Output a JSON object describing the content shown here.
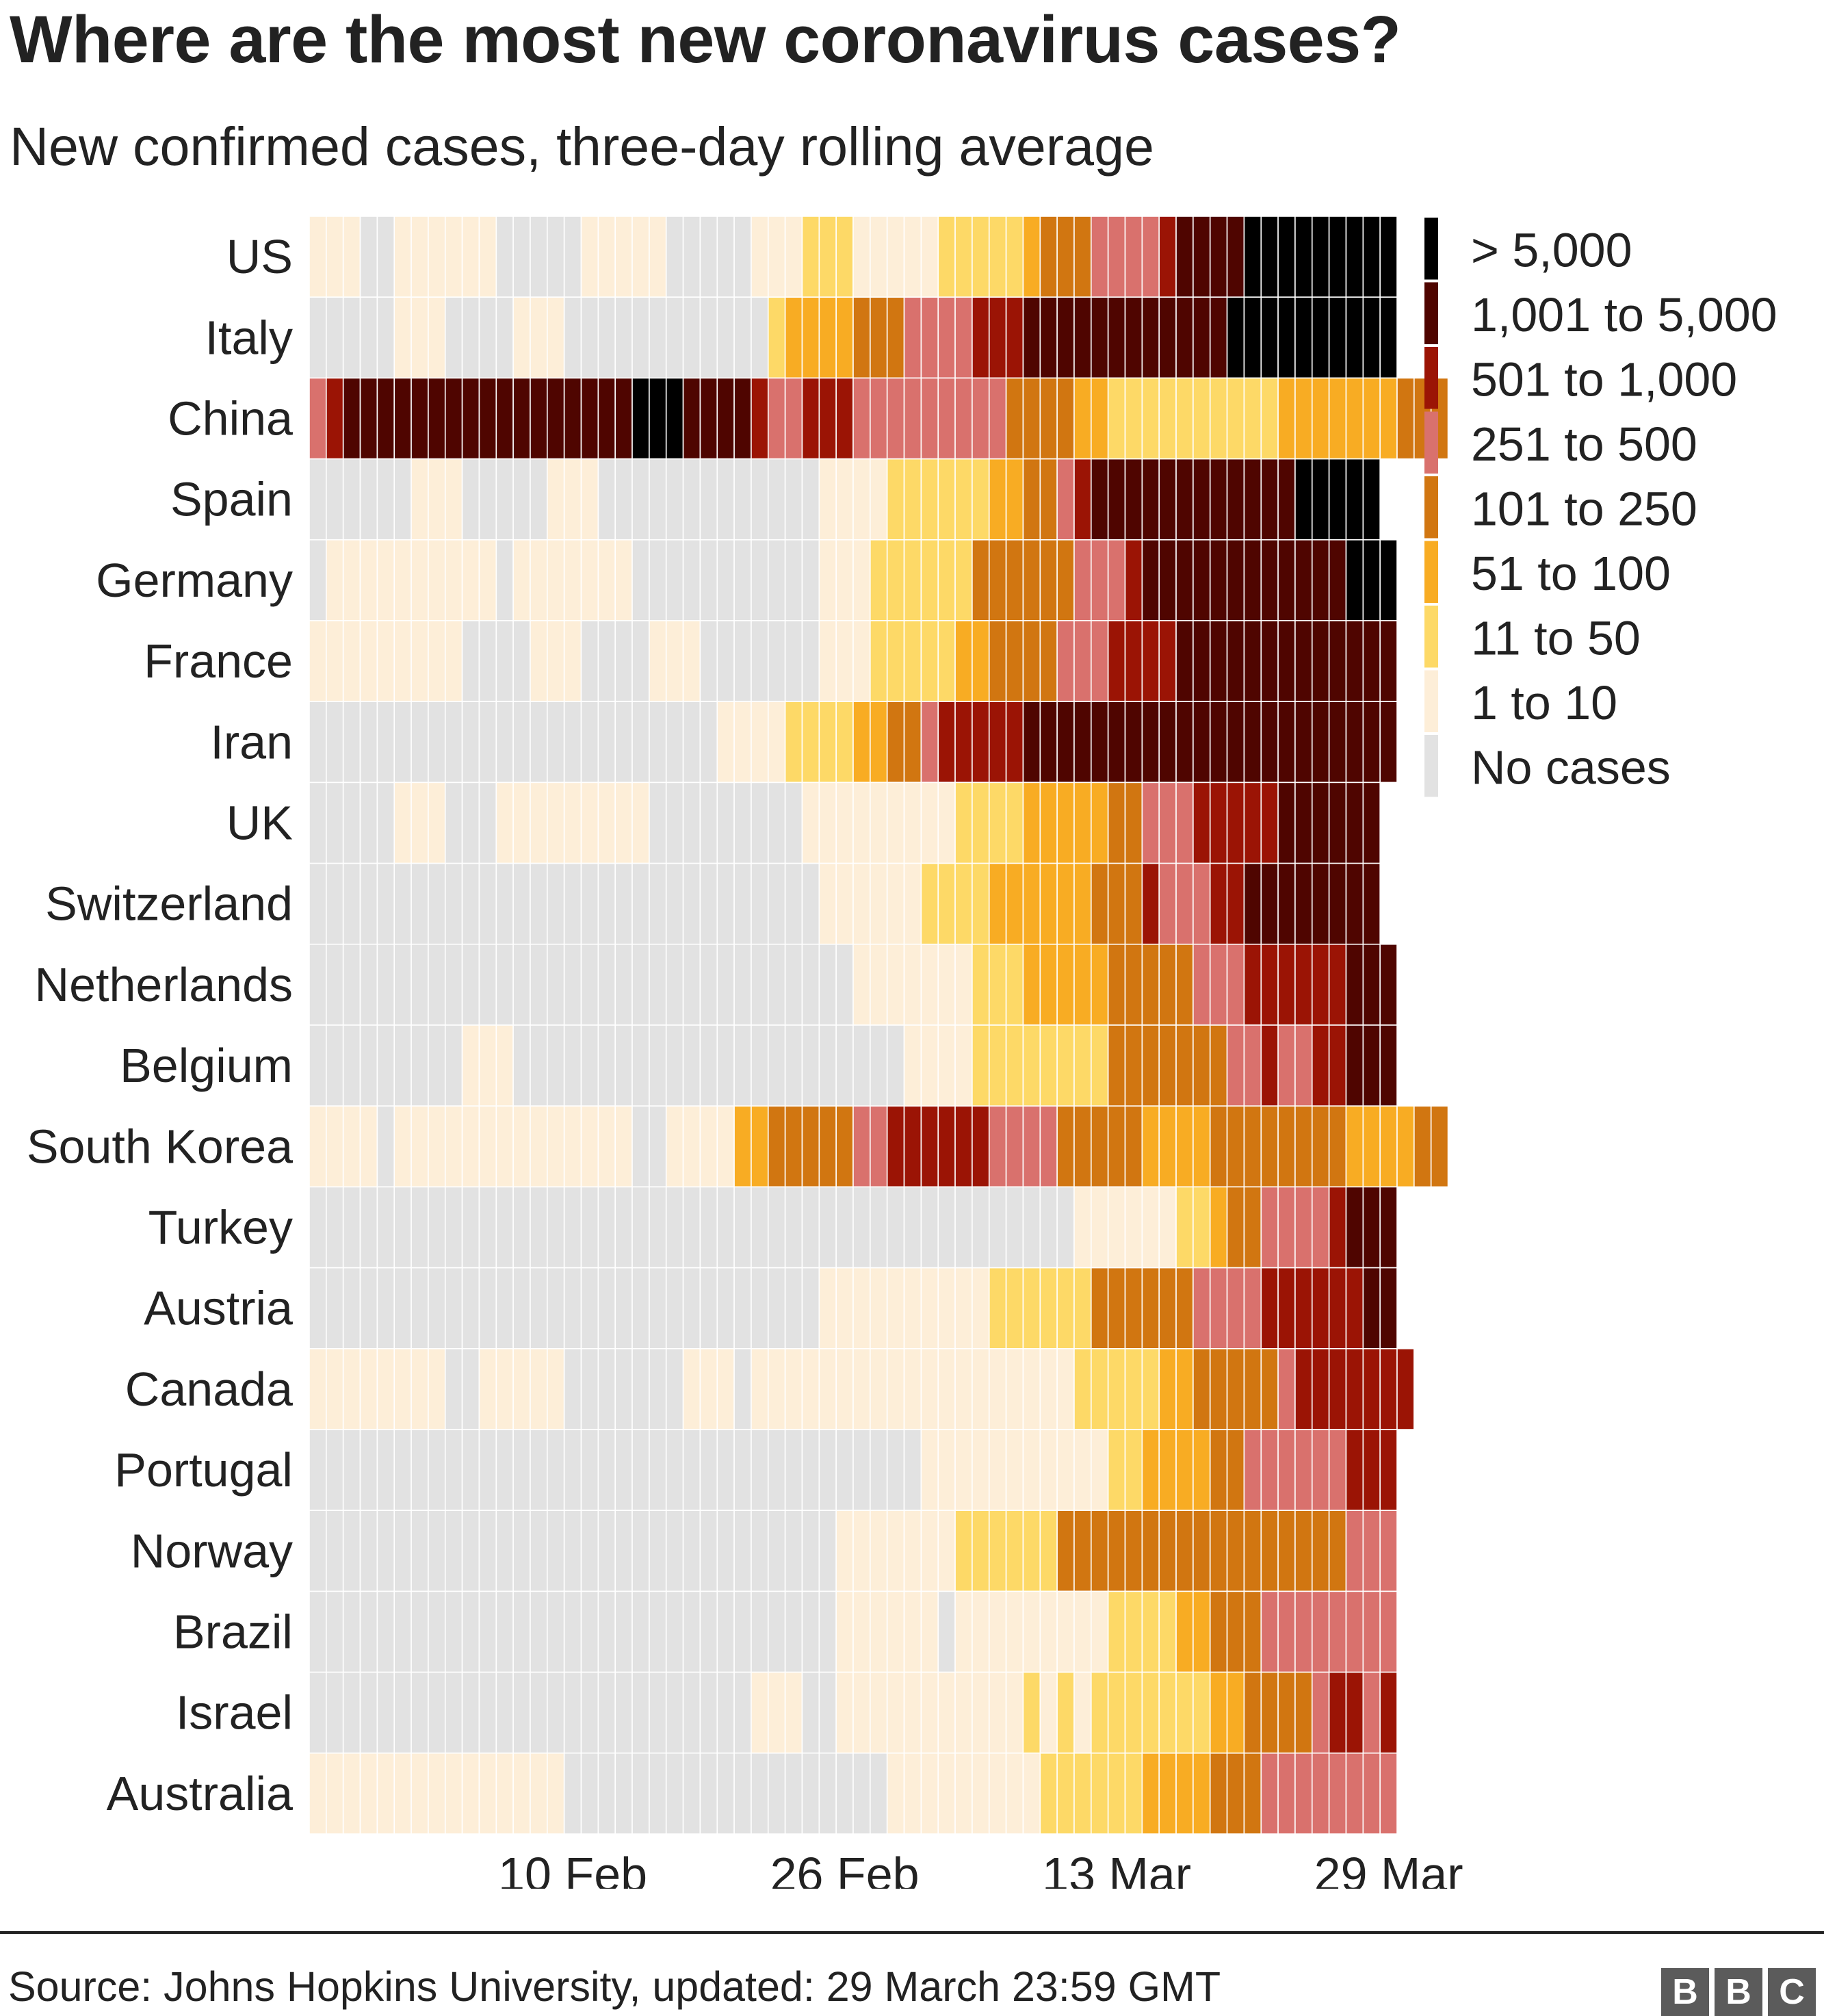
{
  "title": "Where are the most new coronavirus cases?",
  "subtitle": "New confirmed cases, three-day rolling average",
  "source": "Source: Johns Hopkins University, updated:  29 March 23:59 GMT",
  "logo_letters": [
    "B",
    "B",
    "C"
  ],
  "chart_data": {
    "type": "heatmap",
    "title": "Where are the most new coronavirus cases?",
    "subtitle": "New confirmed cases, three-day rolling average",
    "xlabel": "",
    "ylabel": "",
    "x_ticks": [
      "10 Feb",
      "26 Feb",
      "13 Mar",
      "29 Mar"
    ],
    "x_tick_day_index": [
      49,
      65,
      81,
      97
    ],
    "date_range": [
      "22 Jan",
      "29 Mar"
    ],
    "grid": false,
    "legend_position": "right",
    "legend": [
      {
        "level": 8,
        "label": "> 5,000",
        "color": "#000000"
      },
      {
        "level": 7,
        "label": "1,001 to 5,000",
        "color": "#4f0500"
      },
      {
        "level": 6,
        "label": "501 to 1,000",
        "color": "#9b1405"
      },
      {
        "level": 5,
        "label": "251 to 500",
        "color": "#d9716d"
      },
      {
        "level": 4,
        "label": "101 to 250",
        "color": "#d17611"
      },
      {
        "level": 3,
        "label": "51 to 100",
        "color": "#f8ac23"
      },
      {
        "level": 2,
        "label": "11 to 50",
        "color": "#fdd967"
      },
      {
        "level": 1,
        "label": "1 to 10",
        "color": "#fdeed8"
      },
      {
        "level": 0,
        "label": "No cases",
        "color": "#e2e2e2"
      }
    ],
    "rows": [
      {
        "name": "US",
        "segments": [
          [
            3,
            1
          ],
          [
            2,
            0
          ],
          [
            6,
            1
          ],
          [
            5,
            0
          ],
          [
            5,
            1
          ],
          [
            5,
            0
          ],
          [
            3,
            1
          ],
          [
            3,
            2
          ],
          [
            5,
            1
          ],
          [
            5,
            2
          ],
          [
            1,
            3
          ],
          [
            3,
            4
          ],
          [
            4,
            5
          ],
          [
            1,
            6
          ],
          [
            4,
            7
          ],
          [
            9,
            8
          ]
        ]
      },
      {
        "name": "Italy",
        "segments": [
          [
            5,
            0
          ],
          [
            3,
            1
          ],
          [
            4,
            0
          ],
          [
            3,
            1
          ],
          [
            12,
            0
          ],
          [
            1,
            2
          ],
          [
            4,
            3
          ],
          [
            3,
            4
          ],
          [
            4,
            5
          ],
          [
            3,
            6
          ],
          [
            12,
            7
          ],
          [
            10,
            8
          ]
        ]
      },
      {
        "name": "China",
        "segments": [
          [
            1,
            5
          ],
          [
            1,
            6
          ],
          [
            17,
            7
          ],
          [
            3,
            8
          ],
          [
            4,
            7
          ],
          [
            1,
            6
          ],
          [
            2,
            5
          ],
          [
            3,
            6
          ],
          [
            9,
            5
          ],
          [
            4,
            4
          ],
          [
            2,
            3
          ],
          [
            10,
            2
          ],
          [
            7,
            3
          ],
          [
            3,
            4
          ]
        ]
      },
      {
        "name": "Spain",
        "segments": [
          [
            6,
            0
          ],
          [
            3,
            1
          ],
          [
            5,
            0
          ],
          [
            3,
            1
          ],
          [
            13,
            0
          ],
          [
            4,
            1
          ],
          [
            6,
            2
          ],
          [
            2,
            3
          ],
          [
            2,
            4
          ],
          [
            1,
            5
          ],
          [
            1,
            6
          ],
          [
            12,
            7
          ],
          [
            5,
            8
          ]
        ]
      },
      {
        "name": "Germany",
        "segments": [
          [
            1,
            0
          ],
          [
            10,
            1
          ],
          [
            1,
            0
          ],
          [
            7,
            1
          ],
          [
            11,
            0
          ],
          [
            3,
            1
          ],
          [
            6,
            2
          ],
          [
            6,
            4
          ],
          [
            3,
            5
          ],
          [
            1,
            6
          ],
          [
            12,
            7
          ],
          [
            3,
            8
          ]
        ]
      },
      {
        "name": "France",
        "segments": [
          [
            9,
            1
          ],
          [
            4,
            0
          ],
          [
            3,
            1
          ],
          [
            4,
            0
          ],
          [
            3,
            1
          ],
          [
            7,
            0
          ],
          [
            3,
            1
          ],
          [
            5,
            2
          ],
          [
            2,
            3
          ],
          [
            4,
            4
          ],
          [
            3,
            5
          ],
          [
            4,
            6
          ],
          [
            13,
            7
          ]
        ]
      },
      {
        "name": "Iran",
        "segments": [
          [
            24,
            0
          ],
          [
            4,
            1
          ],
          [
            4,
            2
          ],
          [
            2,
            3
          ],
          [
            2,
            4
          ],
          [
            1,
            5
          ],
          [
            5,
            6
          ],
          [
            22,
            7
          ]
        ]
      },
      {
        "name": "UK",
        "segments": [
          [
            5,
            0
          ],
          [
            3,
            1
          ],
          [
            3,
            0
          ],
          [
            9,
            1
          ],
          [
            9,
            0
          ],
          [
            9,
            1
          ],
          [
            4,
            2
          ],
          [
            5,
            3
          ],
          [
            2,
            4
          ],
          [
            3,
            5
          ],
          [
            5,
            6
          ],
          [
            6,
            7
          ]
        ]
      },
      {
        "name": "Switzerland",
        "segments": [
          [
            30,
            0
          ],
          [
            6,
            1
          ],
          [
            4,
            2
          ],
          [
            6,
            3
          ],
          [
            3,
            4
          ],
          [
            1,
            6
          ],
          [
            3,
            5
          ],
          [
            2,
            6
          ],
          [
            8,
            7
          ]
        ]
      },
      {
        "name": "Netherlands",
        "segments": [
          [
            32,
            0
          ],
          [
            7,
            1
          ],
          [
            3,
            2
          ],
          [
            5,
            3
          ],
          [
            5,
            4
          ],
          [
            3,
            5
          ],
          [
            6,
            6
          ],
          [
            3,
            7
          ]
        ]
      },
      {
        "name": "Belgium",
        "segments": [
          [
            9,
            0
          ],
          [
            3,
            1
          ],
          [
            23,
            0
          ],
          [
            4,
            1
          ],
          [
            8,
            2
          ],
          [
            7,
            4
          ],
          [
            2,
            5
          ],
          [
            1,
            6
          ],
          [
            2,
            5
          ],
          [
            2,
            6
          ],
          [
            3,
            7
          ]
        ]
      },
      {
        "name": "South Korea",
        "segments": [
          [
            4,
            1
          ],
          [
            1,
            0
          ],
          [
            14,
            1
          ],
          [
            2,
            0
          ],
          [
            4,
            1
          ],
          [
            2,
            3
          ],
          [
            5,
            4
          ],
          [
            2,
            5
          ],
          [
            6,
            6
          ],
          [
            4,
            5
          ],
          [
            5,
            4
          ],
          [
            4,
            3
          ],
          [
            8,
            4
          ],
          [
            4,
            3
          ],
          [
            2,
            4
          ]
        ]
      },
      {
        "name": "Turkey",
        "segments": [
          [
            45,
            0
          ],
          [
            6,
            1
          ],
          [
            2,
            2
          ],
          [
            1,
            3
          ],
          [
            2,
            4
          ],
          [
            4,
            5
          ],
          [
            1,
            6
          ],
          [
            3,
            7
          ]
        ]
      },
      {
        "name": "Austria",
        "segments": [
          [
            30,
            0
          ],
          [
            10,
            1
          ],
          [
            6,
            2
          ],
          [
            6,
            4
          ],
          [
            4,
            5
          ],
          [
            6,
            6
          ],
          [
            2,
            7
          ]
        ]
      },
      {
        "name": "Canada",
        "segments": [
          [
            8,
            1
          ],
          [
            2,
            0
          ],
          [
            5,
            1
          ],
          [
            7,
            0
          ],
          [
            3,
            1
          ],
          [
            1,
            0
          ],
          [
            19,
            1
          ],
          [
            5,
            2
          ],
          [
            2,
            3
          ],
          [
            5,
            4
          ],
          [
            1,
            5
          ],
          [
            7,
            6
          ]
        ]
      },
      {
        "name": "Portugal",
        "segments": [
          [
            36,
            0
          ],
          [
            11,
            1
          ],
          [
            2,
            2
          ],
          [
            4,
            3
          ],
          [
            2,
            4
          ],
          [
            6,
            5
          ],
          [
            3,
            6
          ]
        ]
      },
      {
        "name": "Norway",
        "segments": [
          [
            31,
            0
          ],
          [
            7,
            1
          ],
          [
            6,
            2
          ],
          [
            17,
            4
          ],
          [
            3,
            5
          ]
        ]
      },
      {
        "name": "Brazil",
        "segments": [
          [
            31,
            0
          ],
          [
            6,
            1
          ],
          [
            1,
            0
          ],
          [
            9,
            1
          ],
          [
            4,
            2
          ],
          [
            2,
            3
          ],
          [
            3,
            4
          ],
          [
            8,
            5
          ]
        ]
      },
      {
        "name": "Israel",
        "segments": [
          [
            26,
            0
          ],
          [
            3,
            1
          ],
          [
            2,
            0
          ],
          [
            11,
            1
          ],
          [
            1,
            2
          ],
          [
            1,
            1
          ],
          [
            1,
            2
          ],
          [
            1,
            1
          ],
          [
            7,
            2
          ],
          [
            2,
            3
          ],
          [
            4,
            4
          ],
          [
            1,
            5
          ],
          [
            2,
            6
          ],
          [
            1,
            5
          ],
          [
            1,
            6
          ]
        ]
      },
      {
        "name": "Australia",
        "segments": [
          [
            15,
            1
          ],
          [
            19,
            0
          ],
          [
            9,
            1
          ],
          [
            6,
            2
          ],
          [
            4,
            3
          ],
          [
            3,
            4
          ],
          [
            8,
            5
          ]
        ]
      }
    ]
  }
}
